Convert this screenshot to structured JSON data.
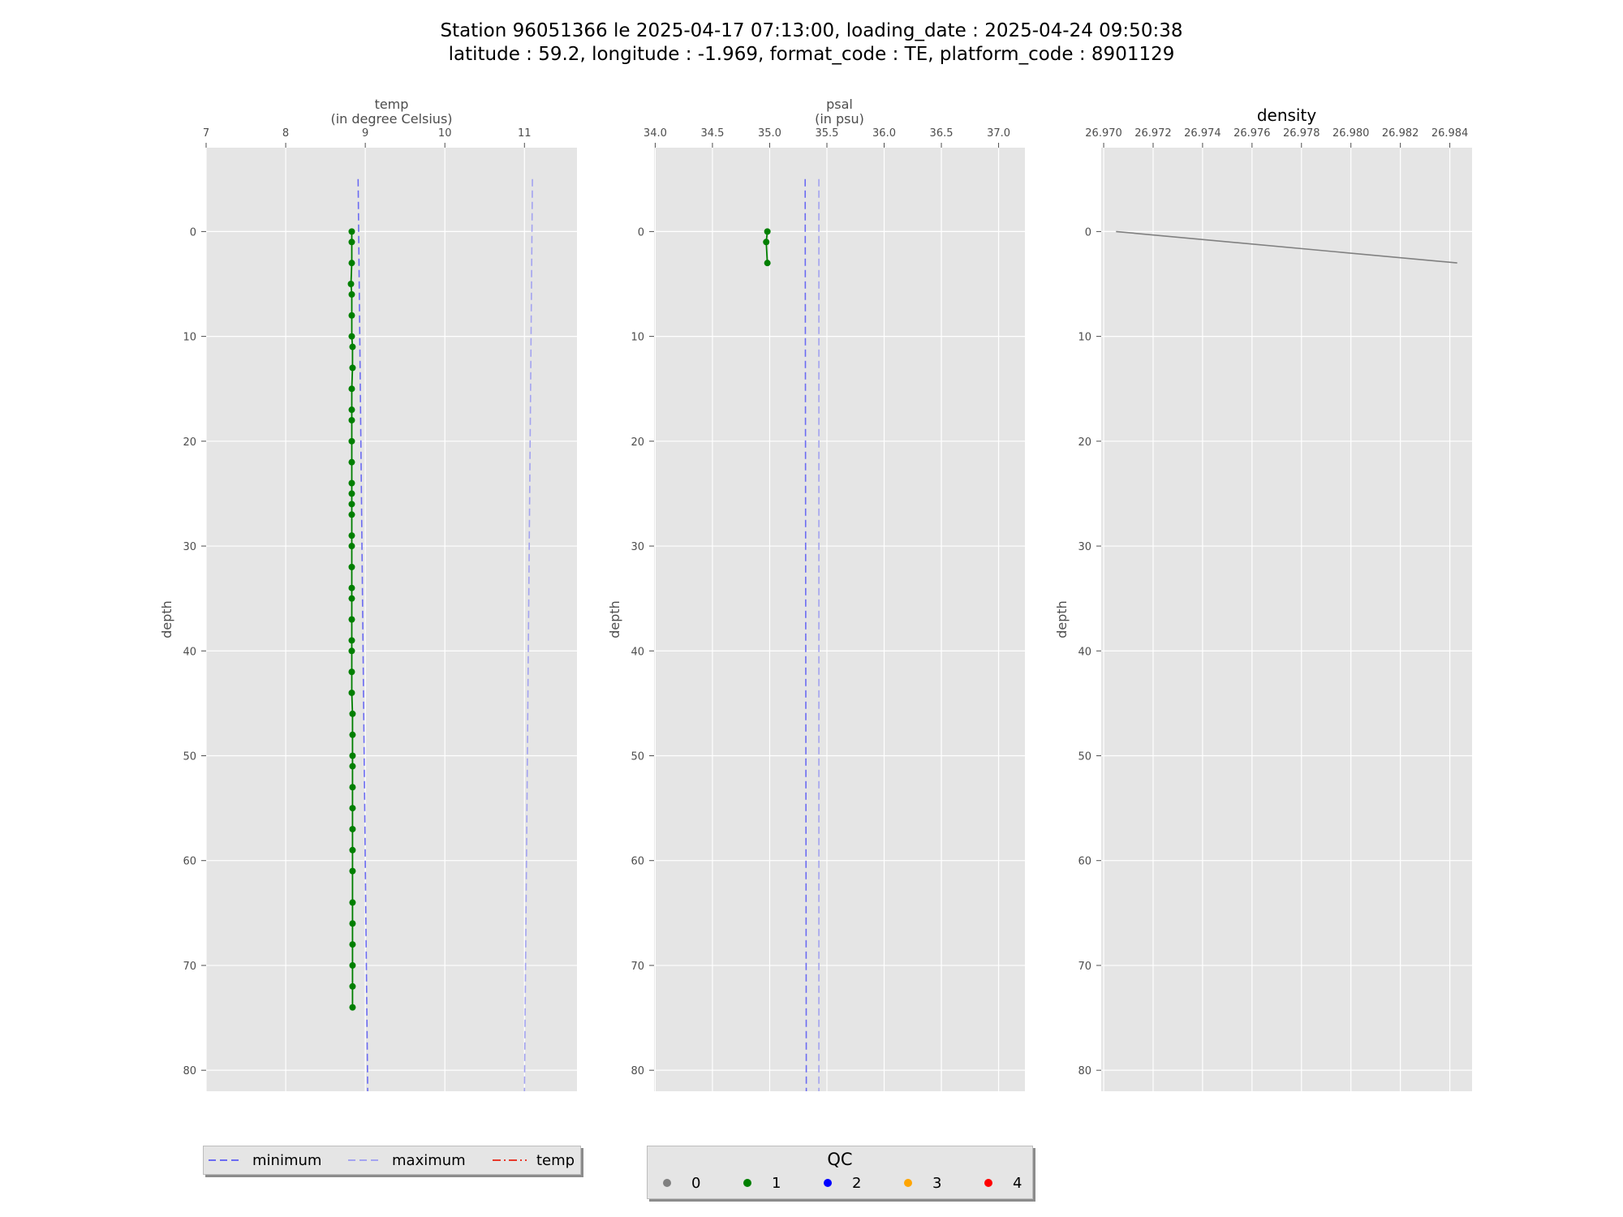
{
  "title": {
    "line1": "Station 96051366 le 2025-04-17 07:13:00, loading_date : 2025-04-24 09:50:38",
    "line2": "latitude : 59.2, longitude : -1.969, format_code : TE, platform_code : 8901129"
  },
  "colors": {
    "axes_bg": "#e5e5e5",
    "grid": "#ffffff",
    "minimum": "#6b6bf2",
    "maximum": "#a3a3f0",
    "temp_legend": "#e8392b",
    "qc0": "#808080",
    "qc1": "#007f00",
    "qc2": "#0000ff",
    "qc3": "#ffa500",
    "qc4": "#ff0000",
    "density_line": "#808080"
  },
  "chart_data": [
    {
      "type": "line",
      "name": "temp",
      "title": "",
      "xlabel": "temp\n(in degree Celsius)",
      "ylabel": "depth",
      "x_ticks": [
        "7",
        "8",
        "9",
        "10",
        "11"
      ],
      "y_ticks": [
        "0",
        "10",
        "20",
        "30",
        "40",
        "50",
        "60",
        "70",
        "80"
      ],
      "xlim": [
        7,
        11.66
      ],
      "ylim": [
        82,
        -8
      ],
      "y_inverted": true,
      "x_axis_position": "top",
      "grid": true,
      "series": [
        {
          "name": "minimum",
          "style": "dashed",
          "color_key": "minimum",
          "points": [
            [
              8.91,
              -5
            ],
            [
              9.03,
              82
            ]
          ]
        },
        {
          "name": "maximum",
          "style": "dashed",
          "color_key": "maximum",
          "points": [
            [
              11.1,
              -5
            ],
            [
              11.0,
              82
            ]
          ]
        },
        {
          "name": "temp",
          "style": "solid",
          "color_key": "qc1",
          "markers": true,
          "qc": 1,
          "points": [
            [
              8.83,
              0
            ],
            [
              8.83,
              1
            ],
            [
              8.83,
              3
            ],
            [
              8.82,
              5
            ],
            [
              8.83,
              6
            ],
            [
              8.83,
              8
            ],
            [
              8.83,
              10
            ],
            [
              8.84,
              11
            ],
            [
              8.84,
              13
            ],
            [
              8.83,
              15
            ],
            [
              8.83,
              17
            ],
            [
              8.83,
              18
            ],
            [
              8.83,
              20
            ],
            [
              8.83,
              22
            ],
            [
              8.83,
              24
            ],
            [
              8.83,
              25
            ],
            [
              8.83,
              26
            ],
            [
              8.83,
              27
            ],
            [
              8.83,
              29
            ],
            [
              8.83,
              30
            ],
            [
              8.83,
              32
            ],
            [
              8.83,
              34
            ],
            [
              8.83,
              35
            ],
            [
              8.83,
              37
            ],
            [
              8.83,
              39
            ],
            [
              8.83,
              40
            ],
            [
              8.83,
              42
            ],
            [
              8.83,
              44
            ],
            [
              8.84,
              46
            ],
            [
              8.84,
              48
            ],
            [
              8.84,
              50
            ],
            [
              8.84,
              51
            ],
            [
              8.84,
              53
            ],
            [
              8.84,
              55
            ],
            [
              8.84,
              57
            ],
            [
              8.84,
              59
            ],
            [
              8.84,
              61
            ],
            [
              8.84,
              64
            ],
            [
              8.84,
              66
            ],
            [
              8.84,
              68
            ],
            [
              8.84,
              70
            ],
            [
              8.84,
              72
            ],
            [
              8.84,
              74
            ]
          ]
        }
      ]
    },
    {
      "type": "line",
      "name": "psal",
      "title": "",
      "xlabel": "psal\n(in psu)",
      "ylabel": "depth",
      "x_ticks": [
        "34.0",
        "34.5",
        "35.0",
        "35.5",
        "36.0",
        "36.5",
        "37.0"
      ],
      "y_ticks": [
        "0",
        "10",
        "20",
        "30",
        "40",
        "50",
        "60",
        "70",
        "80"
      ],
      "xlim": [
        33.99,
        37.23
      ],
      "ylim": [
        82,
        -8
      ],
      "y_inverted": true,
      "x_axis_position": "top",
      "grid": true,
      "series": [
        {
          "name": "minimum",
          "style": "dashed",
          "color_key": "minimum",
          "points": [
            [
              35.31,
              -5
            ],
            [
              35.32,
              82
            ]
          ]
        },
        {
          "name": "maximum",
          "style": "dashed",
          "color_key": "maximum",
          "points": [
            [
              35.43,
              -5
            ],
            [
              35.43,
              82
            ]
          ]
        },
        {
          "name": "psal",
          "style": "solid",
          "color_key": "qc1",
          "markers": true,
          "qc": 1,
          "points": [
            [
              34.98,
              0
            ],
            [
              34.97,
              1
            ],
            [
              34.98,
              3
            ]
          ]
        }
      ]
    },
    {
      "type": "line",
      "name": "density",
      "title": "density",
      "xlabel": "",
      "ylabel": "depth",
      "x_ticks": [
        "26.970",
        "26.972",
        "26.974",
        "26.976",
        "26.978",
        "26.980",
        "26.982",
        "26.984"
      ],
      "y_ticks": [
        "0",
        "10",
        "20",
        "30",
        "40",
        "50",
        "60",
        "70",
        "80"
      ],
      "xlim": [
        26.9699,
        26.9849
      ],
      "ylim": [
        82,
        -8
      ],
      "y_inverted": true,
      "x_axis_position": "top",
      "grid": true,
      "series": [
        {
          "name": "density",
          "style": "solid",
          "color_key": "density_line",
          "points": [
            [
              26.9705,
              0
            ],
            [
              26.9843,
              3
            ]
          ]
        }
      ]
    }
  ],
  "legend_lines": {
    "items": [
      {
        "label": "minimum",
        "style": "dashed",
        "color_key": "minimum"
      },
      {
        "label": "maximum",
        "style": "dashed",
        "color_key": "maximum"
      },
      {
        "label": "temp",
        "style": "dashdot",
        "color_key": "temp_legend"
      }
    ]
  },
  "legend_qc": {
    "title": "QC",
    "items": [
      {
        "label": "0",
        "color_key": "qc0"
      },
      {
        "label": "1",
        "color_key": "qc1"
      },
      {
        "label": "2",
        "color_key": "qc2"
      },
      {
        "label": "3",
        "color_key": "qc3"
      },
      {
        "label": "4",
        "color_key": "qc4"
      }
    ]
  }
}
